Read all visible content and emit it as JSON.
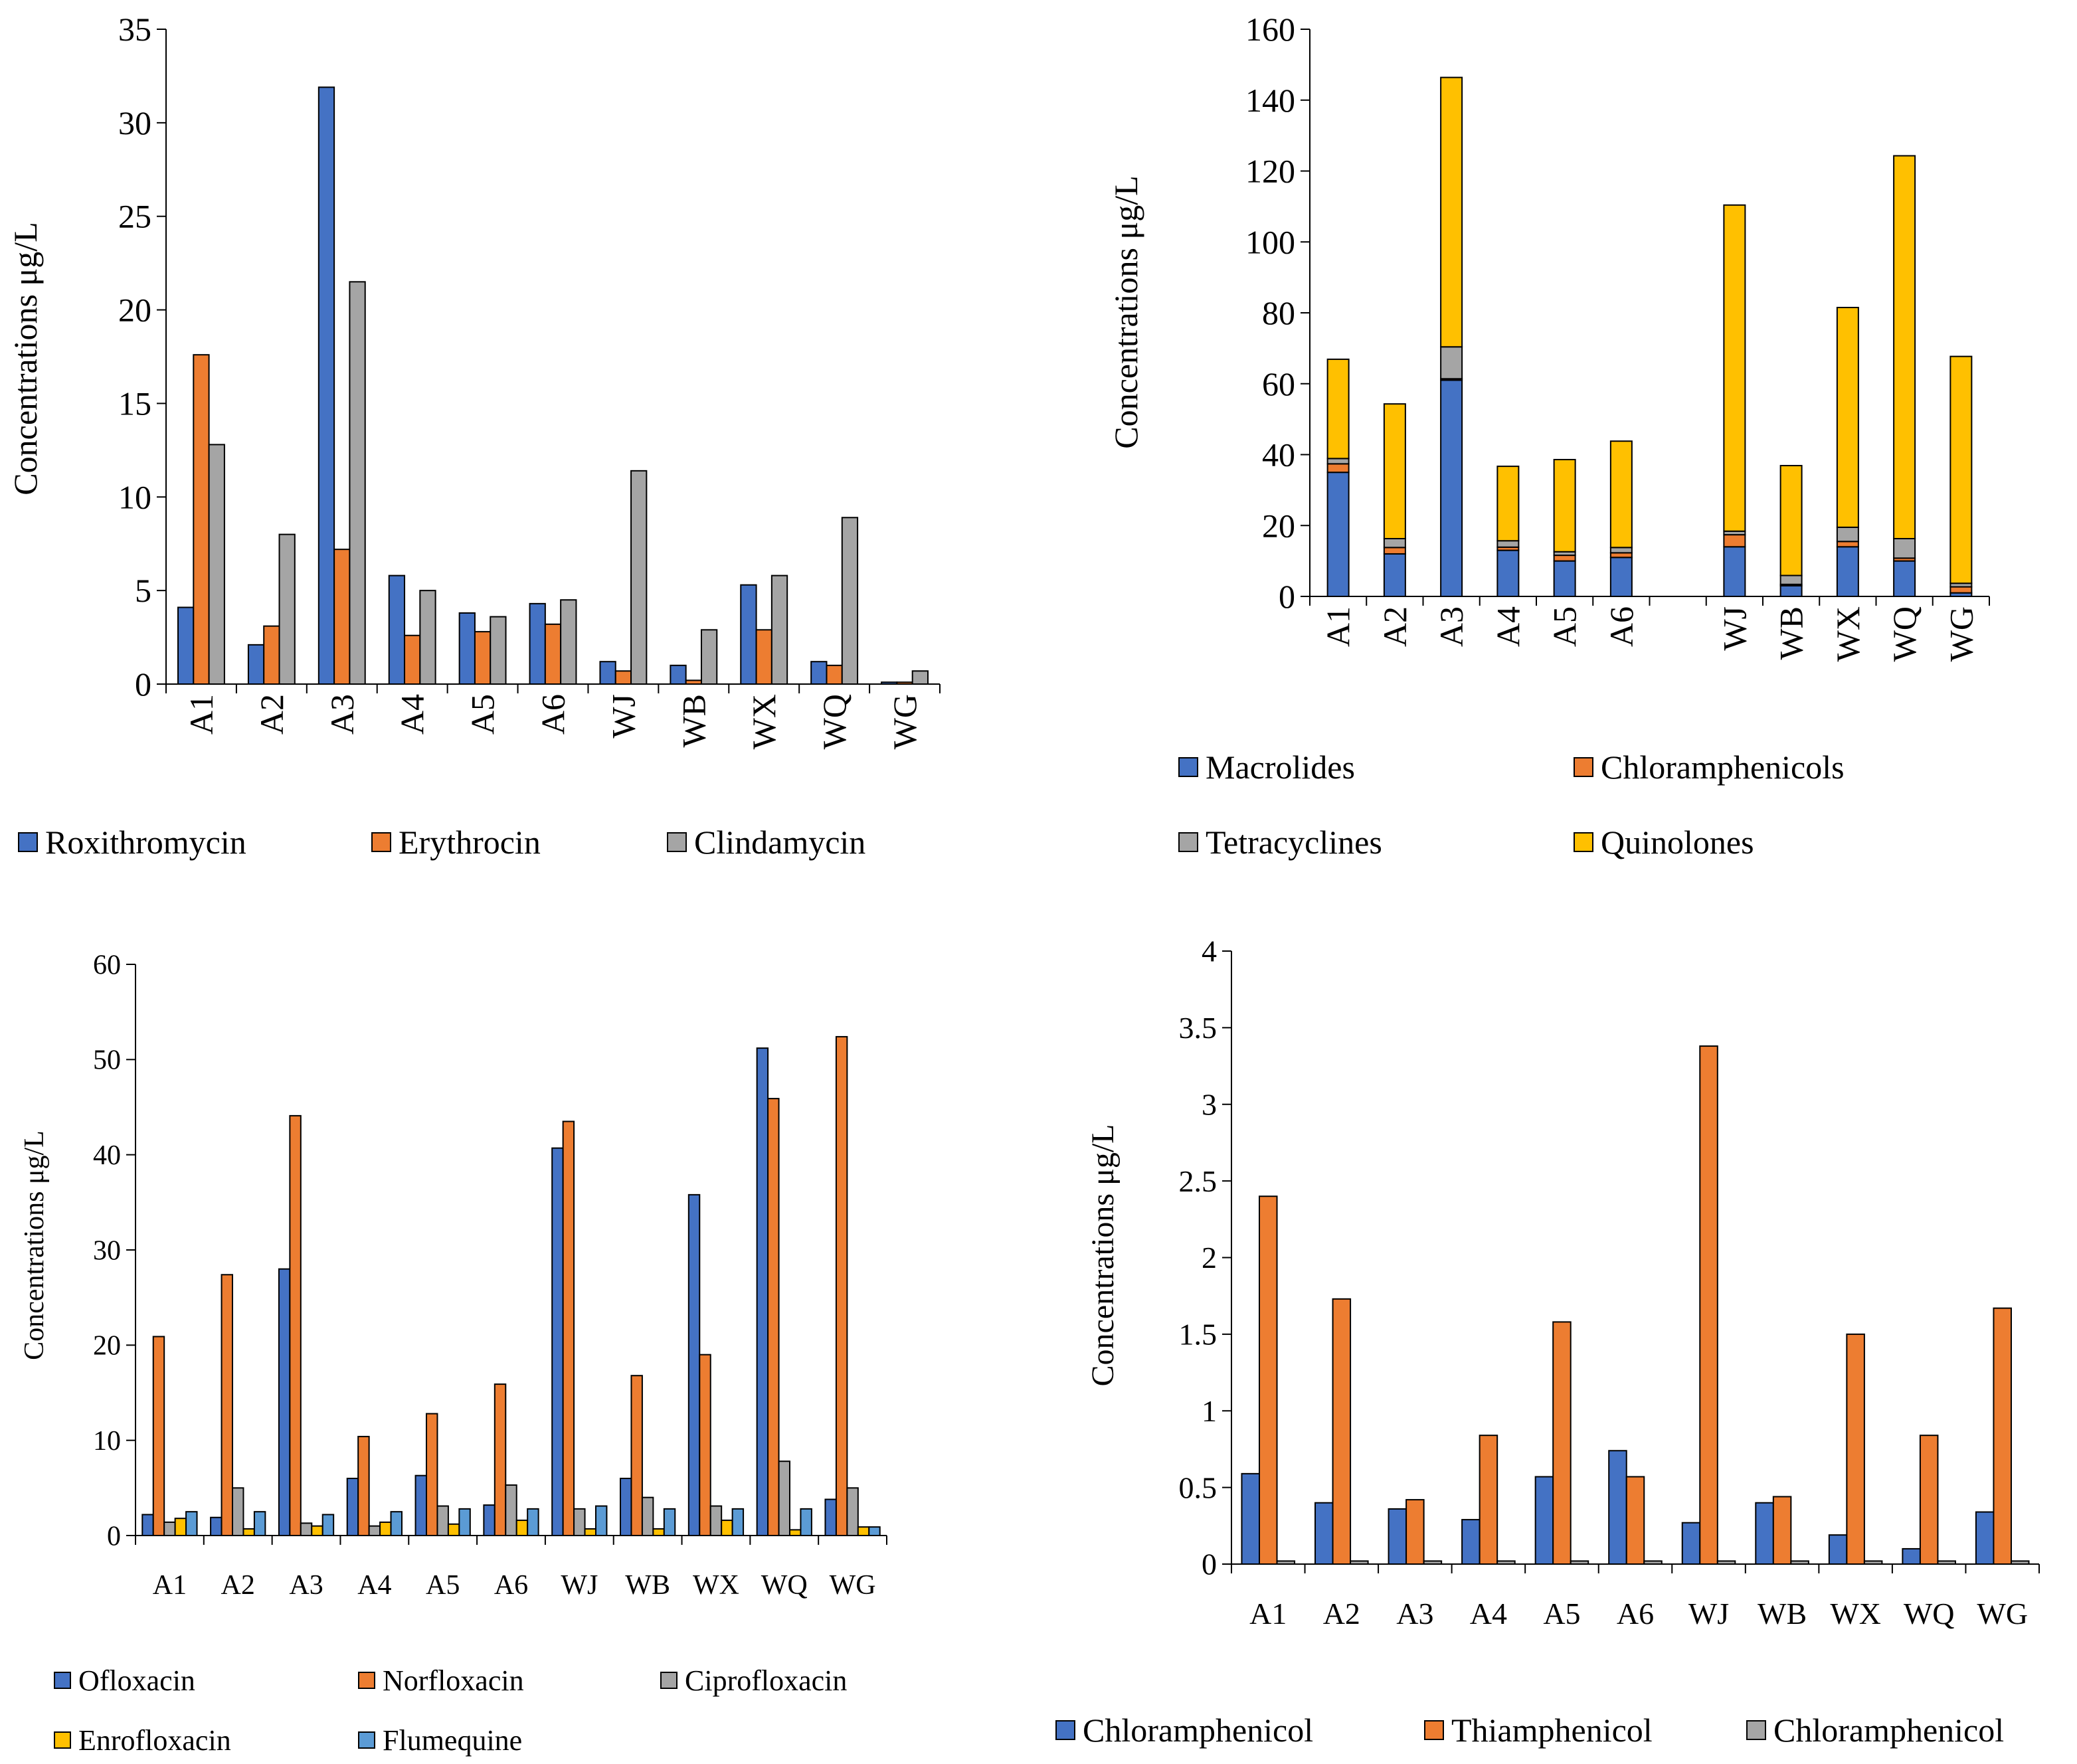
{
  "chart_data": [
    {
      "id": "macrolides",
      "type": "bar",
      "title": "",
      "xlabel": "",
      "ylabel": "Concentrations μg/L",
      "categories": [
        "A1",
        "A2",
        "A3",
        "A4",
        "A5",
        "A6",
        "WJ",
        "WB",
        "WX",
        "WQ",
        "WG"
      ],
      "ylim": [
        0,
        35
      ],
      "yticks": [
        0,
        5,
        10,
        15,
        20,
        25,
        30,
        35
      ],
      "legend_position": "bottom",
      "series": [
        {
          "name": "Roxithromycin",
          "color": "#4472C4",
          "values": [
            4.1,
            2.1,
            31.9,
            5.8,
            3.8,
            4.3,
            1.2,
            1.0,
            5.3,
            1.2,
            0.1
          ]
        },
        {
          "name": "Erythrocin",
          "color": "#ED7D31",
          "values": [
            17.6,
            3.1,
            7.2,
            2.6,
            2.8,
            3.2,
            0.7,
            0.2,
            2.9,
            1.0,
            0.1
          ]
        },
        {
          "name": "Clindamycin",
          "color": "#A5A5A5",
          "values": [
            12.8,
            8.0,
            21.5,
            5.0,
            3.6,
            4.5,
            11.4,
            2.9,
            5.8,
            8.9,
            0.7
          ]
        }
      ]
    },
    {
      "id": "classes-stacked",
      "type": "bar",
      "stacked": true,
      "title": "",
      "xlabel": "",
      "ylabel": "Concentrations  μg/L",
      "categories": [
        "A1",
        "A2",
        "A3",
        "A4",
        "A5",
        "A6",
        "",
        "WJ",
        "WB",
        "WX",
        "WQ",
        "WG"
      ],
      "ylim": [
        0,
        160
      ],
      "yticks": [
        0,
        20,
        40,
        60,
        80,
        100,
        120,
        140,
        160
      ],
      "legend_position": "bottom",
      "series": [
        {
          "name": "Macrolides",
          "color": "#4472C4",
          "values": [
            35,
            12,
            61,
            13,
            10,
            11,
            0,
            14,
            3,
            14,
            10,
            1
          ]
        },
        {
          "name": "Chloramphenicols",
          "color": "#ED7D31",
          "values": [
            2.4,
            1.8,
            0.4,
            0.9,
            1.6,
            1.3,
            0,
            3.4,
            0.4,
            1.5,
            0.8,
            1.7
          ]
        },
        {
          "name": "Tetracyclines",
          "color": "#A5A5A5",
          "values": [
            1.5,
            2.5,
            9.0,
            1.8,
            1.0,
            1.5,
            0,
            1.0,
            2.5,
            4.0,
            5.5,
            1.0
          ]
        },
        {
          "name": "Quinolones",
          "color": "#FFC000",
          "values": [
            28.0,
            38.0,
            76.0,
            21.0,
            26.0,
            30.0,
            0,
            92.0,
            31.0,
            62.0,
            108.0,
            64.0
          ]
        }
      ]
    },
    {
      "id": "quinolones",
      "type": "bar",
      "title": "",
      "xlabel": "",
      "ylabel": "Concentrations μg/L",
      "categories": [
        "A1",
        "A2",
        "A3",
        "A4",
        "A5",
        "A6",
        "WJ",
        "WB",
        "WX",
        "WQ",
        "WG"
      ],
      "ylim": [
        0,
        60
      ],
      "yticks": [
        0,
        10,
        20,
        30,
        40,
        50,
        60
      ],
      "legend_position": "bottom",
      "series": [
        {
          "name": "Ofloxacin",
          "color": "#4472C4",
          "values": [
            2.2,
            1.9,
            28.0,
            6.0,
            6.3,
            3.2,
            40.7,
            6.0,
            35.8,
            51.2,
            3.8
          ]
        },
        {
          "name": "Norfloxacin",
          "color": "#ED7D31",
          "values": [
            20.9,
            27.4,
            44.1,
            10.4,
            12.8,
            15.9,
            43.5,
            16.8,
            19.0,
            45.9,
            52.4
          ]
        },
        {
          "name": "Ciprofloxacin",
          "color": "#A5A5A5",
          "values": [
            1.4,
            5.0,
            1.3,
            1.0,
            3.1,
            5.3,
            2.8,
            4.0,
            3.1,
            7.8,
            5.0
          ]
        },
        {
          "name": "Enrofloxacin",
          "color": "#FFC000",
          "values": [
            1.8,
            0.7,
            1.0,
            1.4,
            1.2,
            1.6,
            0.7,
            0.7,
            1.6,
            0.6,
            0.9
          ]
        },
        {
          "name": "Flumequine",
          "color": "#5B9BD5",
          "values": [
            2.5,
            2.5,
            2.2,
            2.5,
            2.8,
            2.8,
            3.1,
            2.8,
            2.8,
            2.8,
            0.9
          ]
        }
      ]
    },
    {
      "id": "chloramphenicols",
      "type": "bar",
      "title": "",
      "xlabel": "",
      "ylabel": "Concentrations μg/L",
      "categories": [
        "A1",
        "A2",
        "A3",
        "A4",
        "A5",
        "A6",
        "WJ",
        "WB",
        "WX",
        "WQ",
        "WG"
      ],
      "ylim": [
        0,
        4
      ],
      "yticks": [
        0,
        0.5,
        1,
        1.5,
        2,
        2.5,
        3,
        3.5,
        4
      ],
      "legend_position": "bottom",
      "series": [
        {
          "name": "Chloramphenicol",
          "color": "#4472C4",
          "values": [
            0.59,
            0.4,
            0.36,
            0.29,
            0.57,
            0.74,
            0.27,
            0.4,
            0.19,
            0.1,
            0.34
          ]
        },
        {
          "name": "Thiamphenicol",
          "color": "#ED7D31",
          "values": [
            2.4,
            1.73,
            0.42,
            0.84,
            1.58,
            0.57,
            3.38,
            0.44,
            1.5,
            0.84,
            1.67
          ]
        },
        {
          "name": "Chloramphenicol",
          "color": "#A5A5A5",
          "values": [
            0.02,
            0.02,
            0.02,
            0.02,
            0.02,
            0.02,
            0.02,
            0.02,
            0.02,
            0.02,
            0.02
          ]
        }
      ]
    }
  ]
}
